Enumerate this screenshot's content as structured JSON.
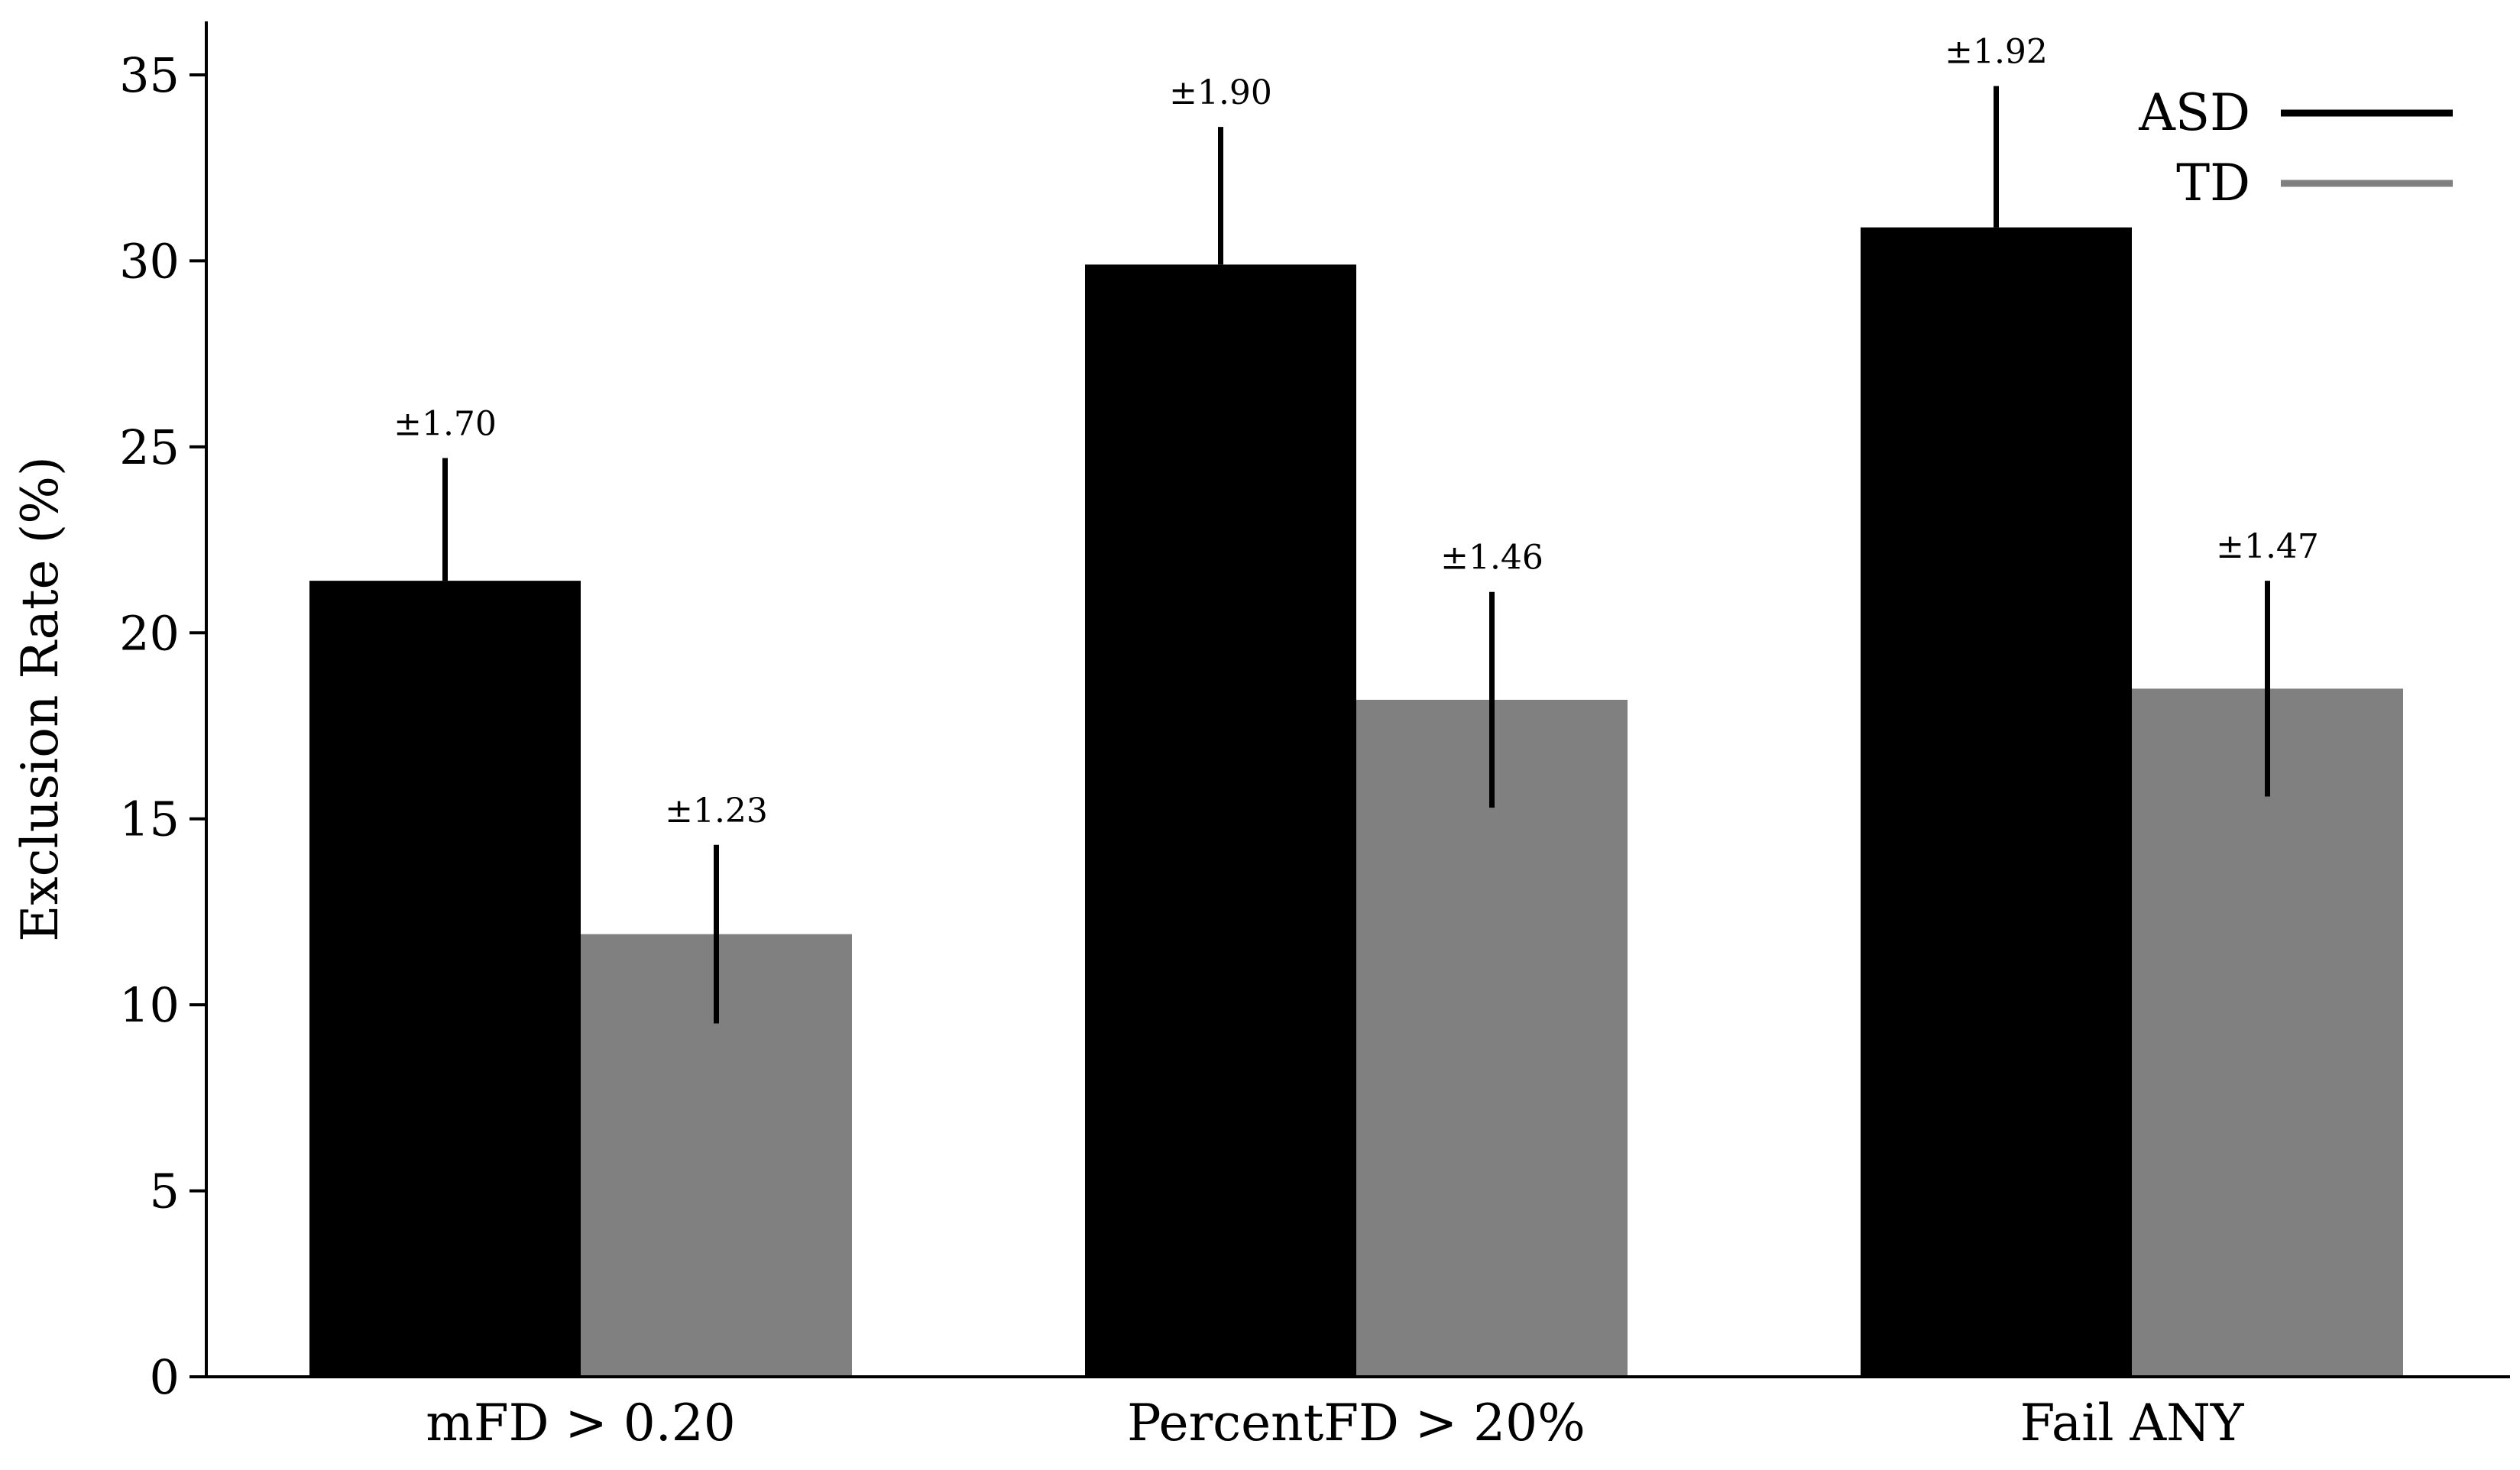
{
  "chart_data": {
    "type": "bar",
    "title": "",
    "xlabel": "",
    "ylabel": "Exclusion Rate (%)",
    "ylim": [
      0,
      35
    ],
    "yticks": [
      0,
      5,
      10,
      15,
      20,
      25,
      30,
      35
    ],
    "grid": false,
    "legend_position": "top-right",
    "categories": [
      "mFD > 0.20",
      "PercentFD > 20%",
      "Fail ANY"
    ],
    "series": [
      {
        "name": "ASD",
        "color": "#000000",
        "values": [
          21.4,
          29.9,
          30.9
        ],
        "errors": [
          3.3,
          3.7,
          3.8
        ],
        "error_labels": [
          "±1.70",
          "±1.90",
          "±1.92"
        ]
      },
      {
        "name": "TD",
        "color": "#808080",
        "values": [
          11.9,
          18.2,
          18.5
        ],
        "errors": [
          2.4,
          2.9,
          2.9
        ],
        "error_labels": [
          "±1.23",
          "±1.46",
          "±1.47"
        ]
      }
    ]
  }
}
